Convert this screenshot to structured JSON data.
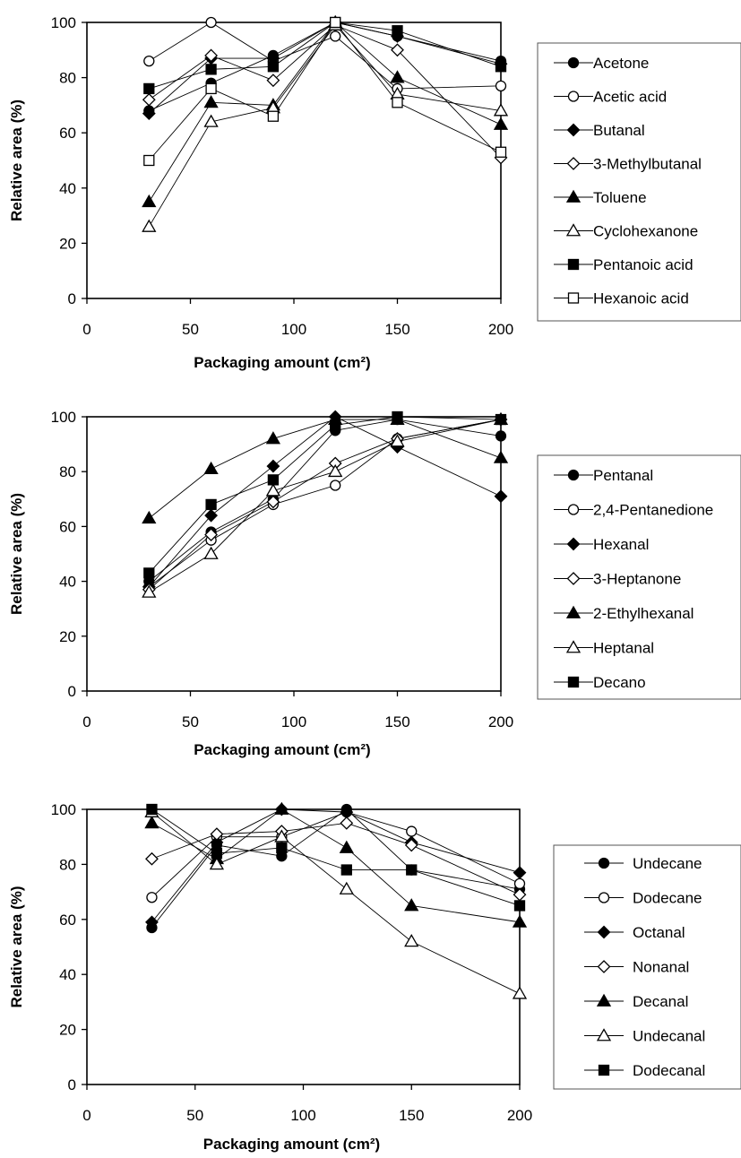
{
  "chart_data": [
    {
      "type": "line",
      "xlabel": "Packaging amount (cm²)",
      "ylabel": "Relative area (%)",
      "xlim": [
        0,
        200
      ],
      "ylim": [
        0,
        100
      ],
      "xticks": [
        0,
        50,
        100,
        150,
        200
      ],
      "yticks": [
        0,
        20,
        40,
        60,
        80,
        100
      ],
      "legend_position": "right",
      "x": [
        30,
        60,
        90,
        120,
        150,
        200
      ],
      "series": [
        {
          "name": "Acetone",
          "marker": "circle-filled",
          "values": [
            68,
            78,
            88,
            100,
            95,
            86
          ]
        },
        {
          "name": "Acetic acid",
          "marker": "circle-open",
          "values": [
            86,
            100,
            86,
            95,
            76,
            77
          ]
        },
        {
          "name": "Butanal",
          "marker": "diamond-filled",
          "values": [
            67,
            87,
            87,
            100,
            95,
            85
          ]
        },
        {
          "name": "3-Methylbutanal",
          "marker": "diamond-open",
          "values": [
            72,
            88,
            79,
            99,
            90,
            51
          ]
        },
        {
          "name": "Toluene",
          "marker": "triangle-filled",
          "values": [
            35,
            71,
            70,
            100,
            80,
            63
          ]
        },
        {
          "name": "Cyclohexanone",
          "marker": "triangle-open",
          "values": [
            26,
            64,
            69,
            99,
            74,
            68
          ]
        },
        {
          "name": "Pentanoic acid",
          "marker": "square-filled",
          "values": [
            76,
            83,
            84,
            100,
            97,
            84
          ]
        },
        {
          "name": "Hexanoic acid",
          "marker": "square-open",
          "values": [
            50,
            76,
            66,
            100,
            71,
            53
          ]
        }
      ]
    },
    {
      "type": "line",
      "xlabel": "Packaging amount (cm²)",
      "ylabel": "Relative area (%)",
      "xlim": [
        0,
        200
      ],
      "ylim": [
        0,
        100
      ],
      "xticks": [
        0,
        50,
        100,
        150,
        200
      ],
      "yticks": [
        0,
        20,
        40,
        60,
        80,
        100
      ],
      "legend_position": "right",
      "x": [
        30,
        60,
        90,
        120,
        150,
        200
      ],
      "series": [
        {
          "name": "Pentanal",
          "marker": "circle-filled",
          "values": [
            40,
            58,
            70,
            95,
            99,
            93
          ]
        },
        {
          "name": "2,4-Pentanedione",
          "marker": "circle-open",
          "values": [
            38,
            55,
            68,
            75,
            92,
            99
          ]
        },
        {
          "name": "Hexanal",
          "marker": "diamond-filled",
          "values": [
            38,
            64,
            82,
            100,
            89,
            71
          ]
        },
        {
          "name": "3-Heptanone",
          "marker": "diamond-open",
          "values": [
            37,
            57,
            69,
            83,
            92,
            99
          ]
        },
        {
          "name": "2-Ethylhexanal",
          "marker": "triangle-filled",
          "values": [
            63,
            81,
            92,
            99,
            99,
            85
          ]
        },
        {
          "name": "Heptanal",
          "marker": "triangle-open",
          "values": [
            36,
            50,
            73,
            80,
            91,
            99
          ]
        },
        {
          "name": "Decano",
          "marker": "square-filled",
          "values": [
            43,
            68,
            77,
            97,
            100,
            99
          ]
        }
      ]
    },
    {
      "type": "line",
      "xlabel": "Packaging amount (cm²)",
      "ylabel": "Relative area (%)",
      "xlim": [
        0,
        200
      ],
      "ylim": [
        0,
        100
      ],
      "xticks": [
        0,
        50,
        100,
        150,
        200
      ],
      "yticks": [
        0,
        20,
        40,
        60,
        80,
        100
      ],
      "legend_position": "right",
      "x": [
        30,
        60,
        90,
        120,
        150,
        200
      ],
      "series": [
        {
          "name": "Undecane",
          "marker": "circle-filled",
          "values": [
            57,
            87,
            83,
            100,
            78,
            71
          ]
        },
        {
          "name": "Dodecane",
          "marker": "circle-open",
          "values": [
            68,
            90,
            90,
            99,
            92,
            73
          ]
        },
        {
          "name": "Octanal",
          "marker": "diamond-filled",
          "values": [
            59,
            88,
            100,
            99,
            88,
            77
          ]
        },
        {
          "name": "Nonanal",
          "marker": "diamond-open",
          "values": [
            82,
            91,
            92,
            95,
            87,
            69
          ]
        },
        {
          "name": "Decanal",
          "marker": "triangle-filled",
          "values": [
            95,
            82,
            100,
            86,
            65,
            59
          ]
        },
        {
          "name": "Undecanal",
          "marker": "triangle-open",
          "values": [
            99,
            80,
            90,
            71,
            52,
            33
          ]
        },
        {
          "name": "Dodecanal",
          "marker": "square-filled",
          "values": [
            100,
            84,
            86,
            78,
            78,
            65
          ]
        }
      ]
    }
  ]
}
